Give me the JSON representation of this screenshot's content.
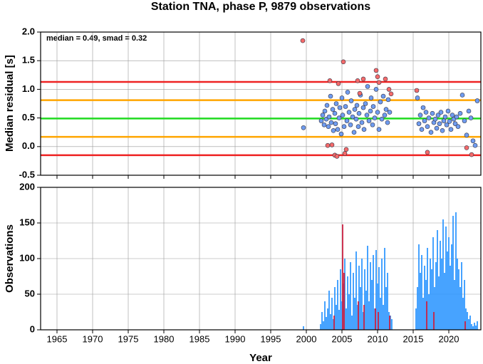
{
  "chart_data": [
    {
      "type": "scatter",
      "title": "Station TNA, phase P, 9879 observations",
      "ylabel": "Median residual [s]",
      "annotation": "median = 0.49, smad = 0.32",
      "xlim": [
        1962.7,
        2024.5
      ],
      "xticks": [
        1965,
        1970,
        1975,
        1980,
        1985,
        1990,
        1995,
        2000,
        2005,
        2010,
        2015,
        2020
      ],
      "ylim": [
        -0.5,
        2.0
      ],
      "yticks": [
        {
          "value": -0.5,
          "label": "-0.5"
        },
        {
          "value": 0,
          "label": "0.0"
        },
        0.5,
        {
          "value": 1,
          "label": "1.0"
        },
        1.5,
        {
          "value": 2,
          "label": "2.0"
        }
      ],
      "grid": true,
      "hlines": [
        {
          "value": 1.13,
          "color": "#ee2222"
        },
        {
          "value": 0.81,
          "color": "#ffa500"
        },
        {
          "value": 0.49,
          "color": "#22dd22"
        },
        {
          "value": 0.17,
          "color": "#ffa500"
        },
        {
          "value": -0.15,
          "color": "#ee2222"
        }
      ],
      "series": [
        {
          "color": "#6f9cf0",
          "x": [
            1999.6,
            2002.1,
            2002.3,
            2002.5,
            2002.6,
            2002.8,
            2002.9,
            2003.1,
            2003.2,
            2003.4,
            2003.5,
            2003.7,
            2003.8,
            2004.0,
            2004.1,
            2004.2,
            2004.4,
            2004.6,
            2004.7,
            2004.9,
            2005.0,
            2005.1,
            2005.3,
            2005.5,
            2005.7,
            2005.8,
            2006.0,
            2006.2,
            2006.3,
            2006.5,
            2006.7,
            2006.8,
            2007.0,
            2007.1,
            2007.3,
            2007.4,
            2007.6,
            2007.8,
            2008.0,
            2008.1,
            2008.3,
            2008.5,
            2008.6,
            2008.8,
            2009.0,
            2009.1,
            2009.3,
            2009.4,
            2009.6,
            2009.8,
            2010.0,
            2010.2,
            2010.4,
            2010.6,
            2010.8,
            2011.0,
            2011.2,
            2011.4,
            2011.5,
            2011.7,
            2015.6,
            2015.8,
            2016.0,
            2016.2,
            2016.4,
            2016.6,
            2016.8,
            2017.0,
            2017.2,
            2017.5,
            2017.7,
            2017.9,
            2018.1,
            2018.3,
            2018.5,
            2018.7,
            2018.9,
            2019.1,
            2019.3,
            2019.5,
            2019.7,
            2019.9,
            2020.1,
            2020.3,
            2020.5,
            2020.7,
            2020.9,
            2021.1,
            2021.3,
            2021.6,
            2021.9,
            2022.2,
            2022.5,
            2022.8,
            2023.1,
            2023.4,
            2023.7,
            2024.0
          ],
          "values": [
            0.33,
            0.45,
            0.55,
            0.38,
            0.62,
            0.48,
            0.72,
            0.35,
            0.52,
            0.88,
            0.42,
            0.65,
            0.28,
            0.58,
            0.4,
            0.75,
            0.3,
            0.5,
            0.68,
            0.22,
            0.85,
            0.55,
            0.35,
            0.7,
            0.45,
            0.95,
            0.6,
            0.38,
            0.8,
            0.52,
            0.25,
            0.65,
            0.48,
            0.72,
            0.35,
            0.58,
            0.9,
            0.42,
            0.68,
            0.3,
            0.75,
            0.55,
            1.05,
            0.45,
            0.62,
            0.85,
            0.38,
            0.7,
            0.5,
            1.0,
            0.6,
            0.3,
            0.78,
            0.48,
            0.88,
            0.55,
            0.65,
            0.42,
            0.82,
            0.6,
            0.85,
            0.4,
            0.55,
            0.3,
            0.68,
            0.45,
            0.6,
            0.35,
            0.5,
            0.25,
            0.58,
            0.42,
            0.48,
            0.32,
            0.55,
            0.4,
            0.6,
            0.28,
            0.45,
            0.52,
            0.38,
            0.62,
            0.44,
            0.3,
            0.55,
            0.48,
            0.4,
            0.52,
            0.35,
            0.58,
            0.9,
            0.45,
            0.2,
            0.62,
            0.5,
            0.1,
            0.02,
            0.8
          ]
        },
        {
          "color": "#f46a6a",
          "x": [
            1999.5,
            2003.0,
            2003.3,
            2003.6,
            2004.0,
            2004.3,
            2004.5,
            2005.2,
            2005.4,
            2005.6,
            2007.2,
            2007.5,
            2008.0,
            2009.8,
            2010.0,
            2010.2,
            2011.1,
            2011.6,
            2011.9,
            2015.5,
            2017.0,
            2022.5,
            2023.2
          ],
          "values": [
            1.85,
            0.02,
            1.15,
            0.03,
            -0.15,
            -0.17,
            1.1,
            1.48,
            -0.12,
            -0.05,
            1.15,
            0.93,
            1.18,
            1.33,
            1.22,
            1.12,
            1.18,
            1.0,
            0.92,
            0.98,
            -0.1,
            -0.02,
            -0.14
          ]
        }
      ]
    },
    {
      "type": "bar",
      "ylabel": "Observations",
      "xlabel": "Year",
      "xlim": [
        1962.7,
        2024.5
      ],
      "xticks": [
        1965,
        1970,
        1975,
        1980,
        1985,
        1990,
        1995,
        2000,
        2005,
        2010,
        2015,
        2020
      ],
      "ylim": [
        0,
        200
      ],
      "yticks": [
        0,
        50,
        100,
        150,
        200
      ],
      "grid": true,
      "series": [
        {
          "color": "#3399ff",
          "x": [
            1999.6,
            2002.0,
            2002.2,
            2002.4,
            2002.6,
            2002.8,
            2003.0,
            2003.2,
            2003.4,
            2003.6,
            2003.8,
            2004.0,
            2004.2,
            2004.4,
            2004.6,
            2004.8,
            2005.0,
            2005.2,
            2005.4,
            2005.6,
            2005.8,
            2006.0,
            2006.2,
            2006.4,
            2006.6,
            2006.8,
            2007.0,
            2007.2,
            2007.4,
            2007.6,
            2007.8,
            2008.0,
            2008.2,
            2008.4,
            2008.6,
            2008.8,
            2009.0,
            2009.2,
            2009.4,
            2009.6,
            2009.8,
            2010.0,
            2010.2,
            2010.4,
            2010.6,
            2010.8,
            2011.0,
            2011.2,
            2011.4,
            2011.6,
            2011.8,
            2012.0,
            2015.4,
            2015.6,
            2015.8,
            2016.0,
            2016.2,
            2016.4,
            2016.6,
            2016.8,
            2017.0,
            2017.2,
            2017.4,
            2017.6,
            2017.8,
            2018.0,
            2018.2,
            2018.4,
            2018.6,
            2018.8,
            2019.0,
            2019.2,
            2019.4,
            2019.6,
            2019.8,
            2020.0,
            2020.2,
            2020.4,
            2020.6,
            2020.8,
            2021.0,
            2021.2,
            2021.4,
            2021.6,
            2021.8,
            2022.0,
            2022.2,
            2022.4,
            2022.6,
            2022.8,
            2023.0,
            2023.2,
            2023.4,
            2023.6,
            2023.8,
            2024.0
          ],
          "values": [
            5,
            8,
            25,
            12,
            40,
            18,
            30,
            55,
            22,
            45,
            15,
            60,
            35,
            70,
            28,
            85,
            40,
            65,
            100,
            30,
            75,
            50,
            95,
            20,
            80,
            45,
            110,
            35,
            90,
            60,
            100,
            25,
            85,
            55,
            118,
            40,
            95,
            70,
            105,
            30,
            112,
            65,
            88,
            45,
            100,
            35,
            115,
            60,
            80,
            25,
            20,
            15,
            30,
            60,
            120,
            80,
            105,
            45,
            90,
            70,
            115,
            50,
            100,
            85,
            130,
            60,
            95,
            140,
            75,
            125,
            100,
            155,
            80,
            145,
            110,
            130,
            90,
            120,
            160,
            70,
            165,
            100,
            85,
            60,
            95,
            45,
            70,
            30,
            25,
            15,
            20,
            8,
            5,
            10,
            6,
            12
          ]
        },
        {
          "color": "#cc2244",
          "x": [
            2003.9,
            2005.1,
            2005.3,
            2007.3,
            2008.1,
            2009.7,
            2010.1,
            2011.7,
            2016.9,
            2017.9,
            2022.3
          ],
          "values": [
            20,
            148,
            80,
            40,
            35,
            30,
            25,
            20,
            40,
            25,
            12
          ]
        }
      ]
    }
  ]
}
